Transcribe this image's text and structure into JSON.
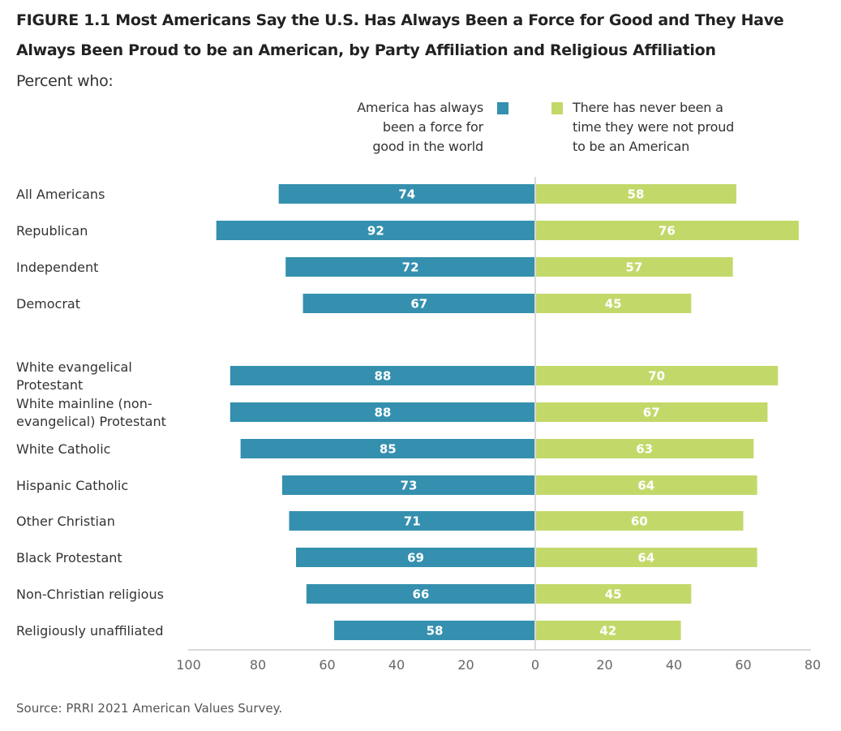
{
  "chart_data": {
    "type": "bar",
    "orientation": "horizontal-diverging",
    "title": "FIGURE 1.1  Most Americans Say the U.S. Has Always Been a Force for Good and They Have Always Been Proud to be an American, by Party Affiliation and Religious Affiliation",
    "title_lines": [
      "FIGURE 1.1  Most Americans Say the U.S. Has Always Been a Force for Good and They Have",
      "Always Been Proud to be an American, by Party Affiliation and Religious Affiliation"
    ],
    "subtitle": "Percent who:",
    "categories": [
      "All Americans",
      "Republican",
      "Independent",
      "Democrat",
      "White evangelical Protestant",
      "White mainline (non-evangelical) Protestant",
      "White Catholic",
      "Hispanic Catholic",
      "Other Christian",
      "Black Protestant",
      "Non-Christian religious",
      "Religiously unaffiliated"
    ],
    "category_lines": [
      [
        "All Americans"
      ],
      [
        "Republican"
      ],
      [
        "Independent"
      ],
      [
        "Democrat"
      ],
      [
        "White evangelical",
        "Protestant"
      ],
      [
        "White mainline (non-",
        "evangelical) Protestant"
      ],
      [
        "White Catholic"
      ],
      [
        "Hispanic Catholic"
      ],
      [
        "Other Christian"
      ],
      [
        "Black Protestant"
      ],
      [
        "Non-Christian religious"
      ],
      [
        "Religiously unaffiliated"
      ]
    ],
    "groups": [
      {
        "name": "Party",
        "categories": [
          0,
          1,
          2,
          3
        ]
      },
      {
        "name": "Religion",
        "categories": [
          4,
          5,
          6,
          7,
          8,
          9,
          10,
          11
        ]
      }
    ],
    "series": [
      {
        "name": "America has always been a force for good in the world",
        "legend_lines": [
          "America has always",
          "been a force for",
          "good in the world"
        ],
        "side": "left",
        "color": "#3490AE",
        "values": [
          74,
          92,
          72,
          67,
          88,
          88,
          85,
          73,
          71,
          69,
          66,
          58
        ]
      },
      {
        "name": "There has never been a time they were not proud to be an American",
        "legend_lines": [
          "There has never been a",
          "time they were not proud",
          "to be an American"
        ],
        "side": "right",
        "color": "#C2D96A",
        "values": [
          58,
          76,
          57,
          45,
          70,
          67,
          63,
          64,
          60,
          64,
          45,
          42
        ]
      }
    ],
    "xlim_left": [
      0,
      100
    ],
    "xlim_right": [
      0,
      80
    ],
    "x_ticks": [
      "100",
      "80",
      "60",
      "40",
      "20",
      "0",
      "20",
      "40",
      "60",
      "80"
    ],
    "x_tick_values": [
      -100,
      -80,
      -60,
      -40,
      -20,
      0,
      20,
      40,
      60,
      80
    ],
    "grid": false,
    "legend_position": "top-center",
    "source": "Source: PRRI 2021 American Values Survey."
  }
}
